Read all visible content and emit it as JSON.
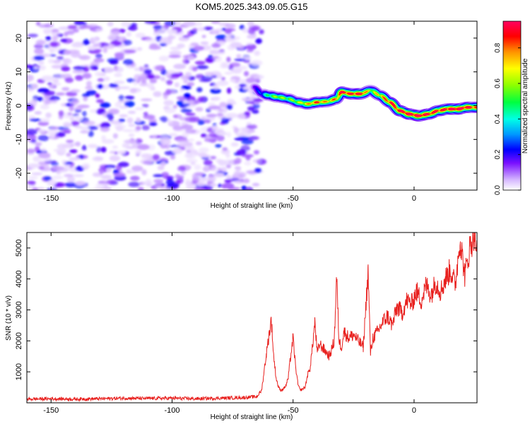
{
  "title": "KOM5.2025.343.09.05.G15",
  "chart_data": [
    {
      "type": "heatmap",
      "title": "KOM5.2025.343.09.05.G15",
      "xlabel": "Height of straight line (km)",
      "ylabel": "Frequency (Hz)",
      "xlim": [
        -160,
        26
      ],
      "ylim": [
        -25,
        25
      ],
      "xticks": [
        -150,
        -100,
        -50,
        0
      ],
      "yticks": [
        -20,
        -10,
        0,
        10,
        20
      ],
      "colorbar": {
        "label": "Normalized spectral amplitude",
        "range": [
          0,
          0.95
        ],
        "ticks": [
          0.0,
          0.2,
          0.4,
          0.6,
          0.8
        ],
        "colors": [
          "#ffffff",
          "#c9a0ff",
          "#6a00ff",
          "#0000ff",
          "#00b4ff",
          "#00ffe0",
          "#00ff40",
          "#80ff00",
          "#ffff00",
          "#ff8000",
          "#ff0000",
          "#ff0060"
        ]
      },
      "noise_region": {
        "x_range": [
          -160,
          -63
        ],
        "f_range": [
          -25,
          25
        ],
        "amplitude": [
          0.0,
          0.25
        ]
      },
      "signal_track": {
        "x": [
          -66,
          -63,
          -60,
          -56,
          -52,
          -48,
          -44,
          -40,
          -36,
          -32,
          -30,
          -26,
          -22,
          -18,
          -14,
          -10,
          -6,
          -2,
          2,
          6,
          10,
          14,
          18,
          22,
          26
        ],
        "freq": [
          5.5,
          3.5,
          3.0,
          2.5,
          2.0,
          1.0,
          0.5,
          1.0,
          1.2,
          2.0,
          4.0,
          3.5,
          3.5,
          4.5,
          3.0,
          1.0,
          -1.5,
          -2.5,
          -3.0,
          -2.5,
          -1.5,
          -1.0,
          -1.0,
          -0.5,
          -0.5
        ],
        "amplitude": [
          0.2,
          0.3,
          0.5,
          0.6,
          0.55,
          0.6,
          0.7,
          0.8,
          0.7,
          0.75,
          0.9,
          0.85,
          0.9,
          0.6,
          0.7,
          0.85,
          0.9,
          0.95,
          0.95,
          0.9,
          0.85,
          0.9,
          0.95,
          0.9,
          0.8
        ]
      }
    },
    {
      "type": "line",
      "xlabel": "Height of straight line (km)",
      "ylabel": "SNR (10 * v/v)",
      "xlim": [
        -160,
        26
      ],
      "ylim": [
        0,
        5500
      ],
      "xticks": [
        -150,
        -100,
        -50,
        0
      ],
      "yticks": [
        1000,
        2000,
        3000,
        4000,
        5000
      ],
      "series": [
        {
          "name": "SNR",
          "color": "#e8201e",
          "x": [
            -160,
            -150,
            -140,
            -130,
            -120,
            -110,
            -100,
            -90,
            -80,
            -70,
            -65,
            -63,
            -61,
            -59,
            -58,
            -57,
            -56,
            -55,
            -54,
            -53,
            -52,
            -51,
            -50,
            -49,
            -48,
            -47,
            -45,
            -44,
            -43,
            -42,
            -41,
            -40,
            -39,
            -37,
            -35,
            -33,
            -32,
            -31,
            -30,
            -29,
            -27,
            -25,
            -23,
            -21,
            -19,
            -18,
            -17,
            -15,
            -13,
            -11,
            -9,
            -7,
            -5,
            -3,
            -1,
            1,
            3,
            5,
            7,
            9,
            11,
            13,
            15,
            17,
            19,
            21,
            23,
            25,
            26
          ],
          "y": [
            120,
            130,
            120,
            130,
            150,
            140,
            150,
            130,
            150,
            170,
            200,
            400,
            1600,
            2700,
            1500,
            800,
            500,
            400,
            450,
            550,
            800,
            1500,
            2100,
            1200,
            600,
            400,
            500,
            900,
            1100,
            1800,
            2600,
            1600,
            1900,
            1700,
            1500,
            2000,
            4050,
            2000,
            1800,
            2300,
            2100,
            2200,
            2000,
            1800,
            4250,
            1600,
            2100,
            2300,
            2600,
            2800,
            2500,
            3100,
            2900,
            3300,
            3200,
            3600,
            3300,
            3800,
            3500,
            3900,
            3600,
            4000,
            4300,
            3800,
            5300,
            4100,
            5000,
            5500,
            4800
          ]
        }
      ]
    }
  ]
}
